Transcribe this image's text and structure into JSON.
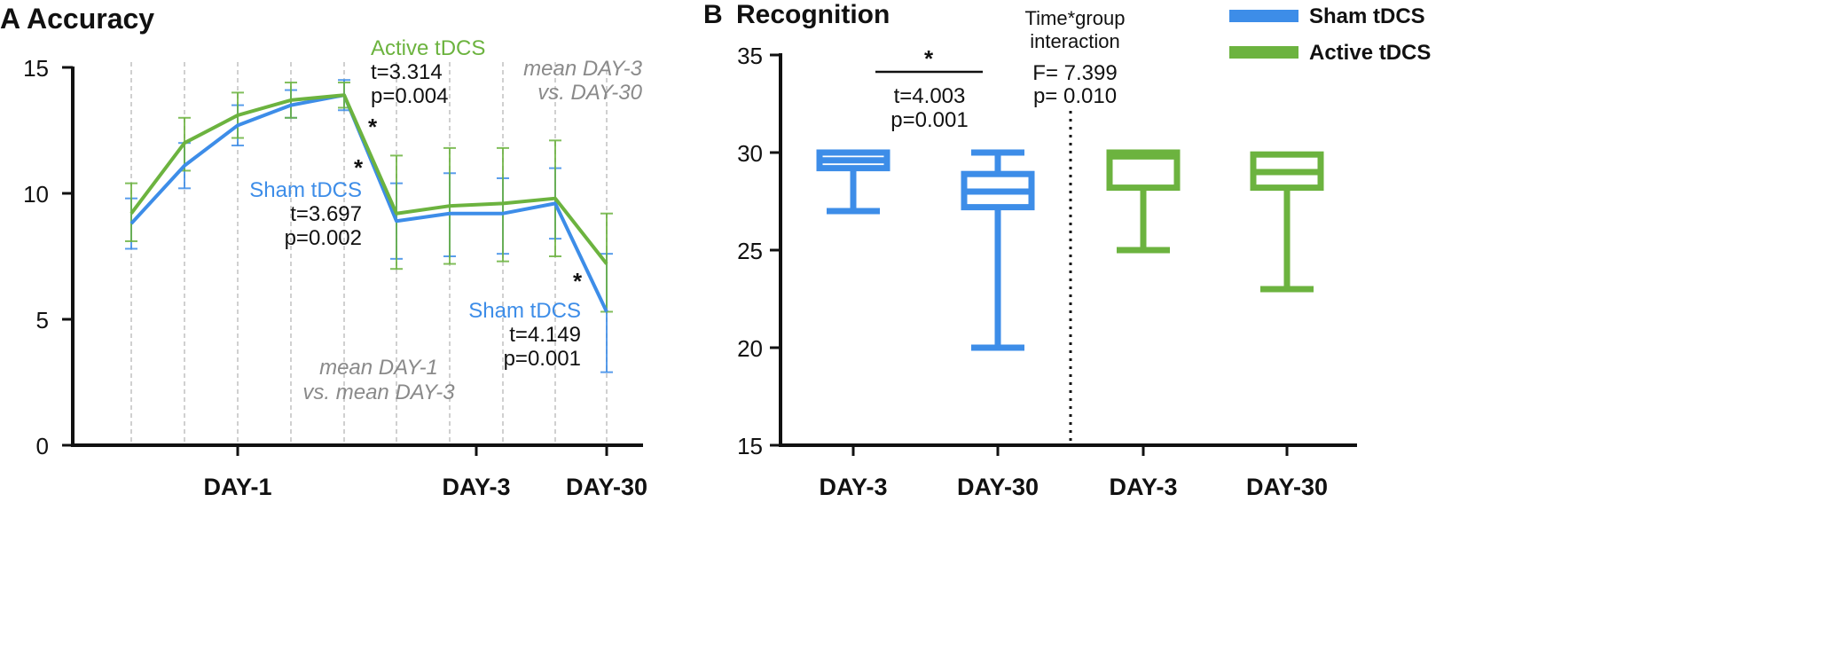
{
  "colors": {
    "sham": "#3d8de8",
    "active": "#6cb33f",
    "axis": "#111111",
    "grid": "#b0b0b0",
    "gray_text": "#8a8a8a"
  },
  "chart_data": [
    {
      "panel_letter": "A",
      "title": "Accuracy",
      "type": "line",
      "ylim": [
        0,
        15
      ],
      "yticks": [
        "0",
        "5",
        "10",
        "15"
      ],
      "x": [
        1,
        2,
        3,
        4,
        5,
        6,
        7,
        8,
        9,
        10
      ],
      "group_labels": [
        "DAY-1",
        "DAY-3",
        "DAY-30"
      ],
      "group_label_x": [
        3,
        8,
        10
      ],
      "series": [
        {
          "name": "Sham tDCS",
          "values": [
            8.8,
            11.1,
            12.7,
            13.5,
            13.9,
            8.9,
            9.2,
            9.2,
            9.6,
            5.3
          ],
          "err_low": [
            7.8,
            10.2,
            11.9,
            13.0,
            13.3,
            7.4,
            7.5,
            7.6,
            8.2,
            2.9
          ],
          "err_high": [
            9.8,
            12.0,
            13.5,
            14.1,
            14.5,
            10.4,
            10.8,
            10.6,
            11.0,
            7.6
          ]
        },
        {
          "name": "Active tDCS",
          "values": [
            9.2,
            12.0,
            13.1,
            13.7,
            13.9,
            9.2,
            9.5,
            9.6,
            9.8,
            7.2
          ],
          "err_low": [
            8.1,
            10.9,
            12.2,
            13.0,
            13.4,
            7.0,
            7.2,
            7.3,
            7.5,
            5.3
          ],
          "err_high": [
            10.4,
            13.0,
            14.0,
            14.4,
            14.4,
            11.5,
            11.8,
            11.8,
            12.1,
            9.2
          ]
        }
      ],
      "annotations": {
        "active_label": "Active tDCS",
        "active_t": "t=3.314",
        "active_p": "p=0.004",
        "sham1_label": "Sham tDCS",
        "sham1_t": "t=3.697",
        "sham1_p": "p=0.002",
        "sham2_label": "Sham tDCS",
        "sham2_t": "t=4.149",
        "sham2_p": "p=0.001",
        "mean1_line1": "mean DAY-1",
        "mean1_line2": "vs. mean DAY-3",
        "mean2_line1": "mean DAY-3",
        "mean2_line2": "vs. DAY-30",
        "star": "*"
      }
    },
    {
      "panel_letter": "B",
      "title": "Recognition",
      "type": "box",
      "ylim": [
        15,
        35
      ],
      "yticks": [
        "15",
        "20",
        "25",
        "30",
        "35"
      ],
      "categories": [
        "DAY-3",
        "DAY-30",
        "DAY-3",
        "DAY-30"
      ],
      "boxes": [
        {
          "group": "Sham tDCS",
          "min": 27,
          "q1": 29.2,
          "median": 29.6,
          "q3": 30,
          "max": 30
        },
        {
          "group": "Sham tDCS",
          "min": 20,
          "q1": 27.2,
          "median": 28,
          "q3": 28.9,
          "max": 30
        },
        {
          "group": "Active tDCS",
          "min": 25,
          "q1": 28.2,
          "median": 29.8,
          "q3": 30,
          "max": 30
        },
        {
          "group": "Active tDCS",
          "min": 23,
          "q1": 28.2,
          "median": 29.0,
          "q3": 29.9,
          "max": 29.9
        }
      ],
      "legend": [
        "Sham tDCS",
        "Active tDCS"
      ],
      "annotations": {
        "star": "*",
        "t": "t=4.003",
        "p": "p=0.001",
        "interaction_line1": "Time*group",
        "interaction_line2": "interaction",
        "F": "F= 7.399",
        "p_interaction": "p= 0.010"
      }
    }
  ]
}
